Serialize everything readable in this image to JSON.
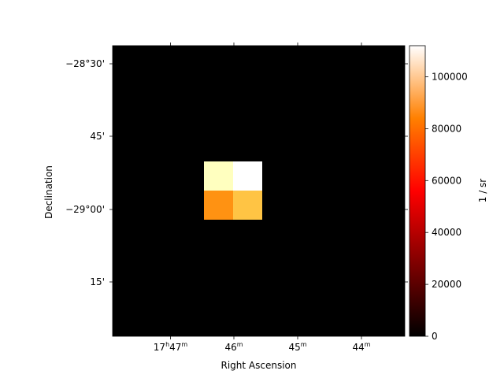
{
  "chart_data": {
    "type": "heatmap",
    "title": "",
    "xlabel": "Right Ascension",
    "ylabel": "Declination",
    "colorbar_label": "1 / sr",
    "colormap": "afmhot",
    "value_range": [
      0,
      112000
    ],
    "x_ticks": [
      {
        "h": "17",
        "m": "47",
        "label": "17h47m"
      },
      {
        "h": "",
        "m": "46",
        "label": "46m"
      },
      {
        "h": "",
        "m": "45",
        "label": "45m"
      },
      {
        "h": "",
        "m": "44",
        "label": "44m"
      }
    ],
    "y_ticks": [
      "−28°30'",
      "45'",
      "−29°00'",
      "15'"
    ],
    "colorbar_ticks": [
      0,
      20000,
      40000,
      60000,
      80000,
      100000
    ],
    "grid_shape": [
      10,
      10
    ],
    "cells": [
      {
        "row": 4,
        "col": 4,
        "value": 98000
      },
      {
        "row": 4,
        "col": 5,
        "value": 112000
      },
      {
        "row": 5,
        "col": 4,
        "value": 60000
      },
      {
        "row": 5,
        "col": 5,
        "value": 71000
      }
    ],
    "background_value": 0,
    "grid": false
  }
}
